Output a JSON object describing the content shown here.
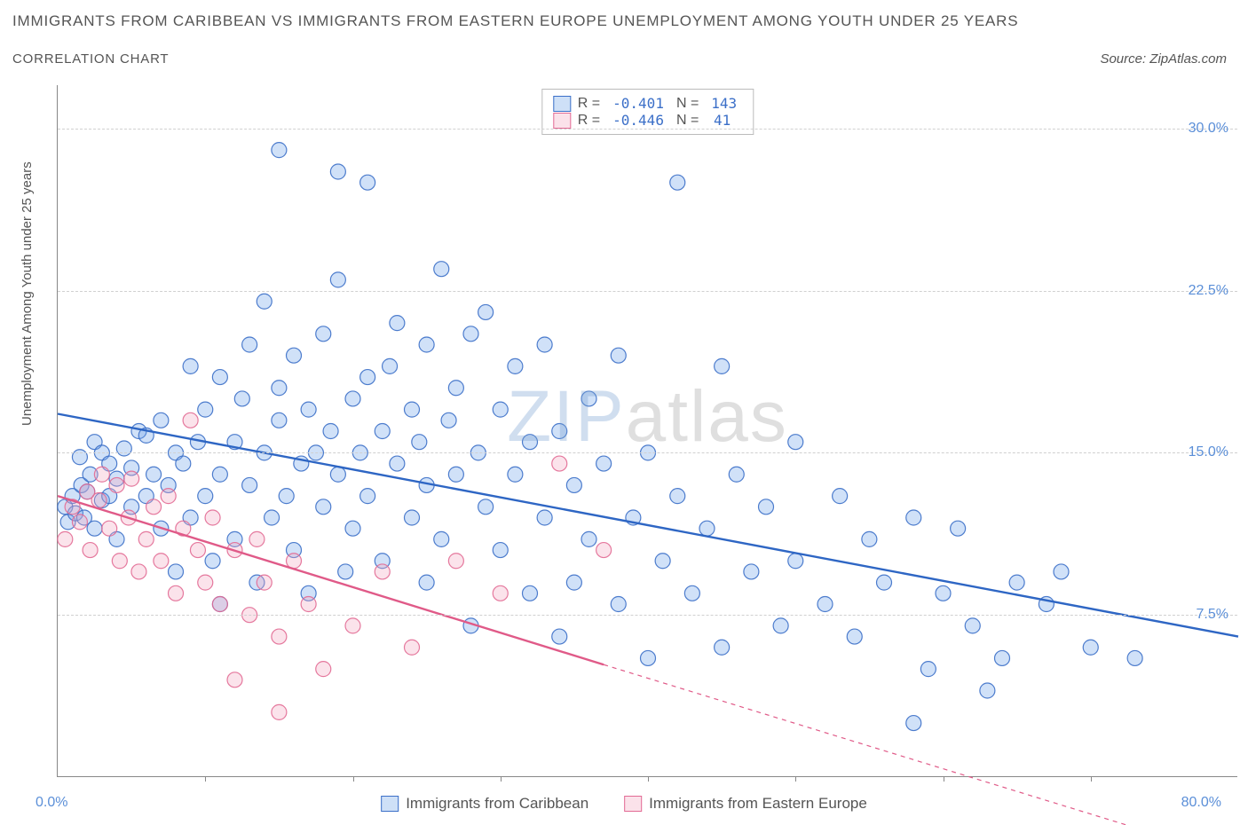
{
  "title": "IMMIGRANTS FROM CARIBBEAN VS IMMIGRANTS FROM EASTERN EUROPE UNEMPLOYMENT AMONG YOUTH UNDER 25 YEARS",
  "subtitle": "CORRELATION CHART",
  "source": "Source: ZipAtlas.com",
  "watermark_zip": "ZIP",
  "watermark_atlas": "atlas",
  "y_axis_label": "Unemployment Among Youth under 25 years",
  "chart": {
    "type": "scatter",
    "background_color": "#ffffff",
    "grid_color": "#d0d0d0",
    "axis_color": "#888888",
    "tick_label_color": "#5b8fd8",
    "xlim": [
      0,
      80
    ],
    "ylim": [
      0,
      32
    ],
    "x_tick_positions": [
      10,
      20,
      30,
      40,
      50,
      60,
      70
    ],
    "y_ticks": [
      {
        "v": 7.5,
        "label": "7.5%"
      },
      {
        "v": 15.0,
        "label": "15.0%"
      },
      {
        "v": 22.5,
        "label": "22.5%"
      },
      {
        "v": 30.0,
        "label": "30.0%"
      }
    ],
    "x_min_label": "0.0%",
    "x_max_label": "80.0%",
    "marker_radius": 8.5,
    "marker_fill_opacity": 0.32,
    "marker_stroke_opacity": 0.9,
    "trend_line_width": 2.4,
    "series": [
      {
        "key": "caribbean",
        "label": "Immigrants from Caribbean",
        "color": "#6da3e8",
        "stroke": "#3b6fc8",
        "line_color": "#2e66c4",
        "R": "-0.401",
        "N": "143",
        "trend": {
          "x1": 0,
          "y1": 16.8,
          "x2": 80,
          "y2": 6.5
        },
        "dashed_extension": null,
        "points": [
          [
            0.5,
            12.5
          ],
          [
            0.7,
            11.8
          ],
          [
            1.0,
            13.0
          ],
          [
            1.2,
            12.2
          ],
          [
            1.5,
            14.8
          ],
          [
            1.6,
            13.5
          ],
          [
            1.8,
            12.0
          ],
          [
            2.0,
            13.2
          ],
          [
            2.2,
            14.0
          ],
          [
            2.5,
            11.5
          ],
          [
            2.5,
            15.5
          ],
          [
            3.0,
            12.8
          ],
          [
            3.0,
            15.0
          ],
          [
            3.5,
            13.0
          ],
          [
            3.5,
            14.5
          ],
          [
            4.0,
            13.8
          ],
          [
            4.0,
            11.0
          ],
          [
            4.5,
            15.2
          ],
          [
            5.0,
            12.5
          ],
          [
            5.0,
            14.3
          ],
          [
            5.5,
            16.0
          ],
          [
            6.0,
            13.0
          ],
          [
            6.0,
            15.8
          ],
          [
            6.5,
            14.0
          ],
          [
            7.0,
            11.5
          ],
          [
            7.0,
            16.5
          ],
          [
            7.5,
            13.5
          ],
          [
            8.0,
            15.0
          ],
          [
            8.0,
            9.5
          ],
          [
            8.5,
            14.5
          ],
          [
            9.0,
            19.0
          ],
          [
            9.0,
            12.0
          ],
          [
            9.5,
            15.5
          ],
          [
            10.0,
            13.0
          ],
          [
            10.0,
            17.0
          ],
          [
            10.5,
            10.0
          ],
          [
            11.0,
            14.0
          ],
          [
            11.0,
            18.5
          ],
          [
            11.0,
            8.0
          ],
          [
            12.0,
            15.5
          ],
          [
            12.0,
            11.0
          ],
          [
            12.5,
            17.5
          ],
          [
            13.0,
            13.5
          ],
          [
            13.0,
            20.0
          ],
          [
            13.5,
            9.0
          ],
          [
            14.0,
            15.0
          ],
          [
            14.0,
            22.0
          ],
          [
            14.5,
            12.0
          ],
          [
            15.0,
            16.5
          ],
          [
            15.0,
            18.0
          ],
          [
            15.0,
            29.0
          ],
          [
            15.5,
            13.0
          ],
          [
            16.0,
            19.5
          ],
          [
            16.0,
            10.5
          ],
          [
            16.5,
            14.5
          ],
          [
            17.0,
            17.0
          ],
          [
            17.0,
            8.5
          ],
          [
            17.5,
            15.0
          ],
          [
            18.0,
            20.5
          ],
          [
            18.0,
            12.5
          ],
          [
            18.5,
            16.0
          ],
          [
            19.0,
            23.0
          ],
          [
            19.0,
            28.0
          ],
          [
            19.0,
            14.0
          ],
          [
            19.5,
            9.5
          ],
          [
            20.0,
            17.5
          ],
          [
            20.0,
            11.5
          ],
          [
            20.5,
            15.0
          ],
          [
            21.0,
            18.5
          ],
          [
            21.0,
            13.0
          ],
          [
            21.0,
            27.5
          ],
          [
            22.0,
            16.0
          ],
          [
            22.0,
            10.0
          ],
          [
            22.5,
            19.0
          ],
          [
            23.0,
            14.5
          ],
          [
            23.0,
            21.0
          ],
          [
            24.0,
            12.0
          ],
          [
            24.0,
            17.0
          ],
          [
            24.5,
            15.5
          ],
          [
            25.0,
            20.0
          ],
          [
            25.0,
            9.0
          ],
          [
            25.0,
            13.5
          ],
          [
            26.0,
            23.5
          ],
          [
            26.0,
            11.0
          ],
          [
            26.5,
            16.5
          ],
          [
            27.0,
            18.0
          ],
          [
            27.0,
            14.0
          ],
          [
            28.0,
            20.5
          ],
          [
            28.0,
            7.0
          ],
          [
            28.5,
            15.0
          ],
          [
            29.0,
            12.5
          ],
          [
            29.0,
            21.5
          ],
          [
            30.0,
            17.0
          ],
          [
            30.0,
            10.5
          ],
          [
            31.0,
            14.0
          ],
          [
            31.0,
            19.0
          ],
          [
            32.0,
            8.5
          ],
          [
            32.0,
            15.5
          ],
          [
            33.0,
            12.0
          ],
          [
            33.0,
            20.0
          ],
          [
            34.0,
            16.0
          ],
          [
            34.0,
            6.5
          ],
          [
            35.0,
            13.5
          ],
          [
            35.0,
            9.0
          ],
          [
            36.0,
            17.5
          ],
          [
            36.0,
            11.0
          ],
          [
            37.0,
            14.5
          ],
          [
            38.0,
            19.5
          ],
          [
            38.0,
            8.0
          ],
          [
            39.0,
            12.0
          ],
          [
            40.0,
            15.0
          ],
          [
            40.0,
            5.5
          ],
          [
            41.0,
            10.0
          ],
          [
            42.0,
            27.5
          ],
          [
            42.0,
            13.0
          ],
          [
            43.0,
            8.5
          ],
          [
            44.0,
            11.5
          ],
          [
            45.0,
            19.0
          ],
          [
            45.0,
            6.0
          ],
          [
            46.0,
            14.0
          ],
          [
            47.0,
            9.5
          ],
          [
            48.0,
            12.5
          ],
          [
            49.0,
            7.0
          ],
          [
            50.0,
            15.5
          ],
          [
            50.0,
            10.0
          ],
          [
            52.0,
            8.0
          ],
          [
            53.0,
            13.0
          ],
          [
            54.0,
            6.5
          ],
          [
            55.0,
            11.0
          ],
          [
            56.0,
            9.0
          ],
          [
            58.0,
            2.5
          ],
          [
            58.0,
            12.0
          ],
          [
            59.0,
            5.0
          ],
          [
            60.0,
            8.5
          ],
          [
            61.0,
            11.5
          ],
          [
            62.0,
            7.0
          ],
          [
            63.0,
            4.0
          ],
          [
            64.0,
            5.5
          ],
          [
            65.0,
            9.0
          ],
          [
            67.0,
            8.0
          ],
          [
            68.0,
            9.5
          ],
          [
            70.0,
            6.0
          ],
          [
            73.0,
            5.5
          ]
        ]
      },
      {
        "key": "eastern_europe",
        "label": "Immigrants from Eastern Europe",
        "color": "#f4a8c0",
        "stroke": "#e26a94",
        "line_color": "#e05a88",
        "R": "-0.446",
        "N": "41",
        "trend": {
          "x1": 0,
          "y1": 13.0,
          "x2": 37,
          "y2": 5.2
        },
        "dashed_extension": {
          "x1": 37,
          "y1": 5.2,
          "x2": 80,
          "y2": -3.8
        },
        "points": [
          [
            0.5,
            11.0
          ],
          [
            1.0,
            12.5
          ],
          [
            1.5,
            11.8
          ],
          [
            2.0,
            13.2
          ],
          [
            2.2,
            10.5
          ],
          [
            2.8,
            12.8
          ],
          [
            3.0,
            14.0
          ],
          [
            3.5,
            11.5
          ],
          [
            4.0,
            13.5
          ],
          [
            4.2,
            10.0
          ],
          [
            4.8,
            12.0
          ],
          [
            5.0,
            13.8
          ],
          [
            5.5,
            9.5
          ],
          [
            6.0,
            11.0
          ],
          [
            6.5,
            12.5
          ],
          [
            7.0,
            10.0
          ],
          [
            7.5,
            13.0
          ],
          [
            8.0,
            8.5
          ],
          [
            8.5,
            11.5
          ],
          [
            9.0,
            16.5
          ],
          [
            9.5,
            10.5
          ],
          [
            10.0,
            9.0
          ],
          [
            10.5,
            12.0
          ],
          [
            11.0,
            8.0
          ],
          [
            12.0,
            10.5
          ],
          [
            12.0,
            4.5
          ],
          [
            13.0,
            7.5
          ],
          [
            13.5,
            11.0
          ],
          [
            14.0,
            9.0
          ],
          [
            15.0,
            6.5
          ],
          [
            15.0,
            3.0
          ],
          [
            16.0,
            10.0
          ],
          [
            17.0,
            8.0
          ],
          [
            18.0,
            5.0
          ],
          [
            20.0,
            7.0
          ],
          [
            22.0,
            9.5
          ],
          [
            24.0,
            6.0
          ],
          [
            27.0,
            10.0
          ],
          [
            30.0,
            8.5
          ],
          [
            34.0,
            14.5
          ],
          [
            37.0,
            10.5
          ]
        ]
      }
    ]
  },
  "legend_top": {
    "r_label": "R =",
    "n_label": "N ="
  }
}
